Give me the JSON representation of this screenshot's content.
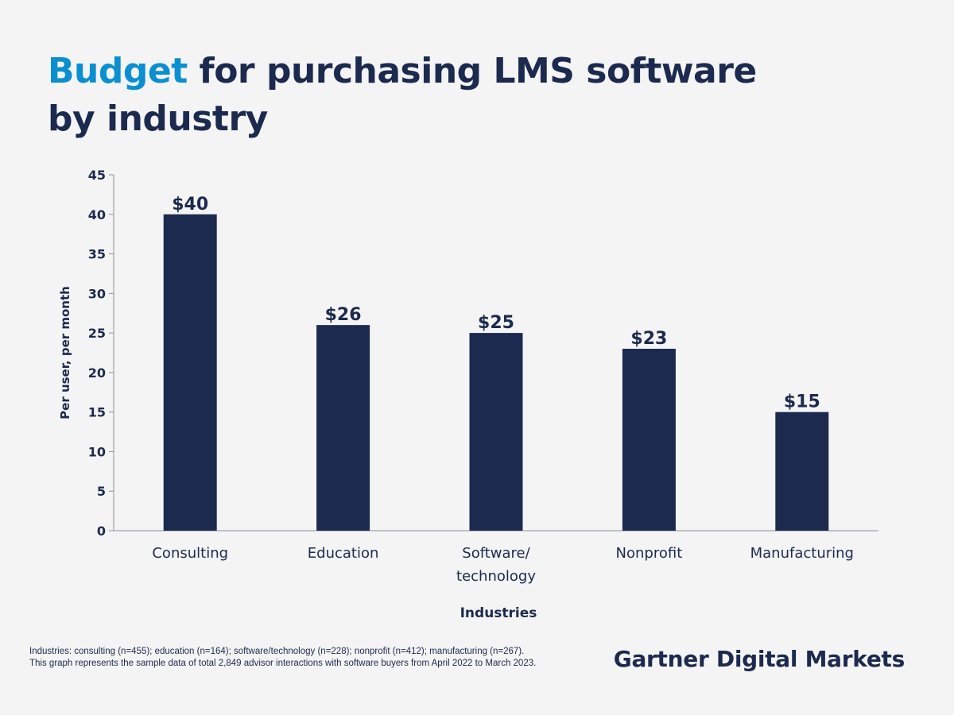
{
  "title": {
    "accent": "Budget",
    "rest": " for purchasing LMS software",
    "line2": "by industry"
  },
  "colors": {
    "background": "#f4f4f5",
    "bar": "#1b2a4e",
    "accent": "#0a8fd0",
    "text": "#1b2a4e",
    "axis": "#8a8f99"
  },
  "chart_data": {
    "type": "bar",
    "categories": [
      [
        "Consulting"
      ],
      [
        "Education"
      ],
      [
        "Software/",
        "technology"
      ],
      [
        "Nonprofit"
      ],
      [
        "Manufacturing"
      ]
    ],
    "values": [
      40,
      26,
      25,
      23,
      15
    ],
    "data_labels": [
      "$40",
      "$26",
      "$25",
      "$23",
      "$15"
    ],
    "xlabel": "Industries",
    "ylabel": "Per user, per month",
    "ylim": [
      0,
      45
    ],
    "yticks": [
      0,
      5,
      10,
      15,
      20,
      25,
      30,
      35,
      40,
      45
    ],
    "grid": false,
    "legend": "none"
  },
  "footnote": {
    "line1": "Industries: consulting (n=455); education (n=164); software/technology (n=228); nonprofit (n=412); manufacturing (n=267).",
    "line2": "This graph represents the sample data of total 2,849 advisor interactions with software buyers from April 2022 to March 2023."
  },
  "brand": "Gartner Digital Markets"
}
